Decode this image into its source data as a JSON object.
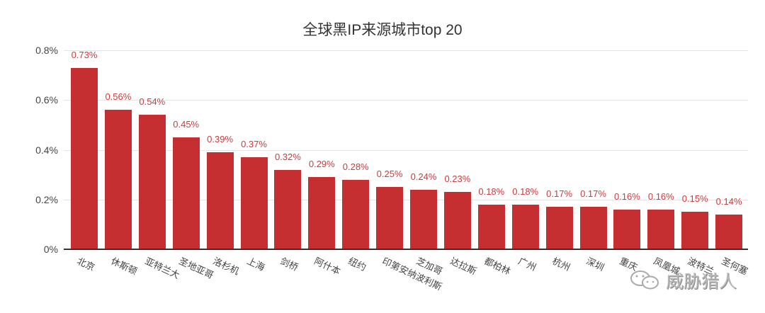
{
  "chart_data": {
    "type": "bar",
    "title": "全球黑IP来源城市top 20",
    "xlabel": "",
    "ylabel": "",
    "ylim": [
      0,
      0.8
    ],
    "yticks": [
      "0%",
      "0.2%",
      "0.4%",
      "0.6%",
      "0.8%"
    ],
    "grid": true,
    "bar_color": "#c62f32",
    "label_color": "#cf3a3c",
    "categories": [
      "北京",
      "休斯顿",
      "亚特兰大",
      "圣地亚哥",
      "洛杉机",
      "上海",
      "剑桥",
      "阿什本",
      "纽约",
      "印第安纳波利斯",
      "芝加哥",
      "达拉斯",
      "都柏林",
      "广州",
      "杭州",
      "深圳",
      "重庆",
      "凤凰城",
      "波特兰",
      "圣何塞"
    ],
    "values": [
      0.73,
      0.56,
      0.54,
      0.45,
      0.39,
      0.37,
      0.32,
      0.29,
      0.28,
      0.25,
      0.24,
      0.23,
      0.18,
      0.18,
      0.17,
      0.17,
      0.16,
      0.16,
      0.15,
      0.14
    ],
    "value_labels": [
      "0.73%",
      "0.56%",
      "0.54%",
      "0.45%",
      "0.39%",
      "0.37%",
      "0.32%",
      "0.29%",
      "0.28%",
      "0.25%",
      "0.24%",
      "0.23%",
      "0.18%",
      "0.18%",
      "0.17%",
      "0.17%",
      "0.16%",
      "0.16%",
      "0.15%",
      "0.14%"
    ]
  },
  "watermark": {
    "icon": "wechat-icon",
    "text": "威胁猎人"
  }
}
